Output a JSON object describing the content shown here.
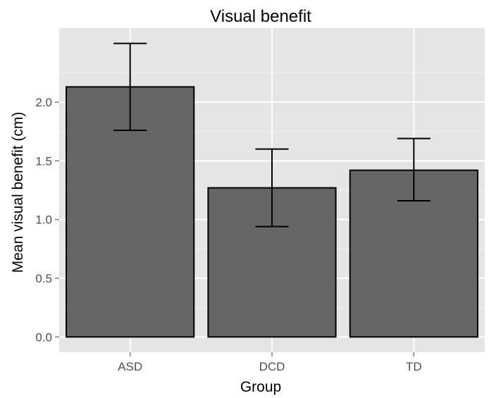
{
  "chart_data": {
    "type": "bar",
    "title": "Visual benefit",
    "xlabel": "Group",
    "ylabel": "Mean visual benefit (cm)",
    "categories": [
      "ASD",
      "DCD",
      "TD"
    ],
    "values": [
      2.13,
      1.27,
      1.42
    ],
    "error_bars": [
      {
        "lower": 1.76,
        "upper": 2.5
      },
      {
        "lower": 0.94,
        "upper": 1.6
      },
      {
        "lower": 1.16,
        "upper": 1.69
      }
    ],
    "ylim": [
      -0.13,
      2.63
    ],
    "yticks": [
      0.0,
      0.5,
      1.0,
      1.5,
      2.0
    ],
    "ytick_labels": [
      "0.0",
      "0.5",
      "1.0",
      "1.5",
      "2.0"
    ],
    "grid": true,
    "legend": "none",
    "colors": {
      "panel_background": "#e5e5e5",
      "grid_major": "#ffffff",
      "grid_minor": "#f2f2f2",
      "bar_fill": "#666666",
      "bar_outline": "#000000",
      "error_bar": "#000000",
      "tick_label": "#4d4d4d"
    }
  }
}
